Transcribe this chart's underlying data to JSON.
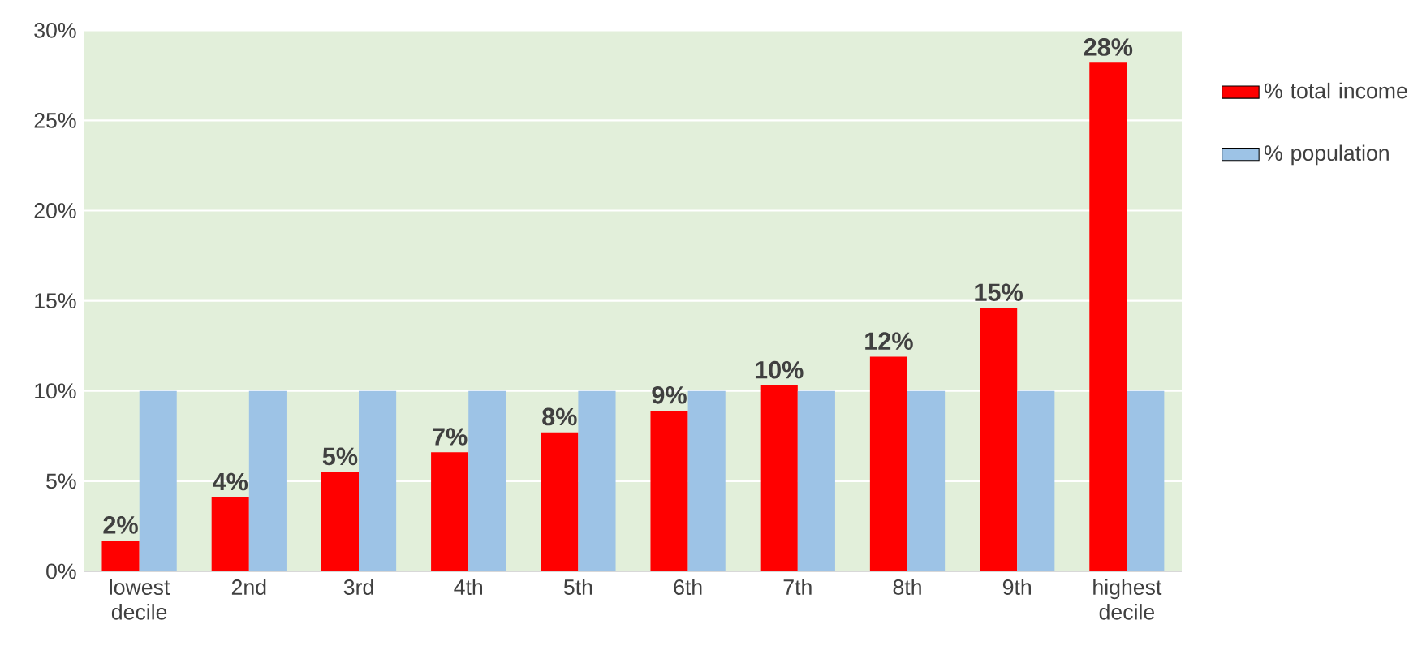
{
  "chart_data": {
    "type": "bar",
    "categories": [
      "lowest decile",
      "2nd",
      "3rd",
      "4th",
      "5th",
      "6th",
      "7th",
      "8th",
      "9th",
      "highest decile"
    ],
    "series": [
      {
        "name": "% total income",
        "color": "#ff0000",
        "values": [
          1.7,
          4.1,
          5.5,
          6.6,
          7.7,
          8.9,
          10.3,
          11.9,
          14.6,
          28.2
        ],
        "value_labels": [
          "2%",
          "4%",
          "5%",
          "7%",
          "8%",
          "9%",
          "10%",
          "12%",
          "15%",
          "28%"
        ]
      },
      {
        "name": "% population",
        "color": "#9dc3e6",
        "values": [
          10,
          10,
          10,
          10,
          10,
          10,
          10,
          10,
          10,
          10
        ]
      }
    ],
    "ylim": [
      0,
      30
    ],
    "yticks": [
      {
        "value": 0,
        "label": "0%"
      },
      {
        "value": 5,
        "label": "5%"
      },
      {
        "value": 10,
        "label": "10%"
      },
      {
        "value": 15,
        "label": "15%"
      },
      {
        "value": 20,
        "label": "20%"
      },
      {
        "value": 25,
        "label": "25%"
      },
      {
        "value": 30,
        "label": "30%"
      }
    ],
    "grid": "y",
    "legend": "top right"
  }
}
